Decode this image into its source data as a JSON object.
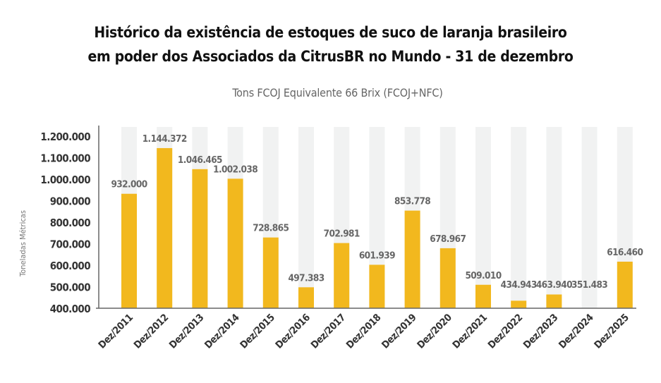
{
  "chart_data": {
    "type": "bar",
    "title": [
      "Histórico da existência de estoques de suco de laranja brasileiro",
      "em poder dos Associados da CitrusBR no Mundo - 31 de dezembro"
    ],
    "subtitle": "Tons FCOJ Equivalente 66 Brix (FCOJ+NFC)",
    "ylabel": "Toneladas Métricas",
    "xlabel": "",
    "ylim": [
      400000,
      1200000
    ],
    "yticks": [
      "400.000",
      "500.000",
      "600.000",
      "700.000",
      "800.000",
      "900.000",
      "1.000.000",
      "1.100.000",
      "1.200.000"
    ],
    "categories": [
      "Dez/2011",
      "Dez/2012",
      "Dez/2013",
      "Dez/2014",
      "Dez/2015",
      "Dez/2016",
      "Dez/2017",
      "Dez/2018",
      "Dez/2019",
      "Dez/2020",
      "Dez/2021",
      "Dez/2022",
      "Dez/2023",
      "Dez/2024",
      "Dez/2025"
    ],
    "values": [
      932000,
      1144372,
      1046465,
      1002038,
      728865,
      497383,
      702981,
      601939,
      853778,
      678967,
      509010,
      434943,
      463940,
      351483,
      616460
    ],
    "data_labels": [
      "932.000",
      "1.144.372",
      "1.046.465",
      "1.002.038",
      "728.865",
      "497.383",
      "702.981",
      "601.939",
      "853.778",
      "678.967",
      "509.010",
      "434.943",
      "463.940",
      "351.483",
      "616.460"
    ],
    "grid": false,
    "legend": "none",
    "colors": {
      "bar": "#F2B81E",
      "background_bar": "#F1F2F2",
      "axis": "#666666"
    }
  }
}
